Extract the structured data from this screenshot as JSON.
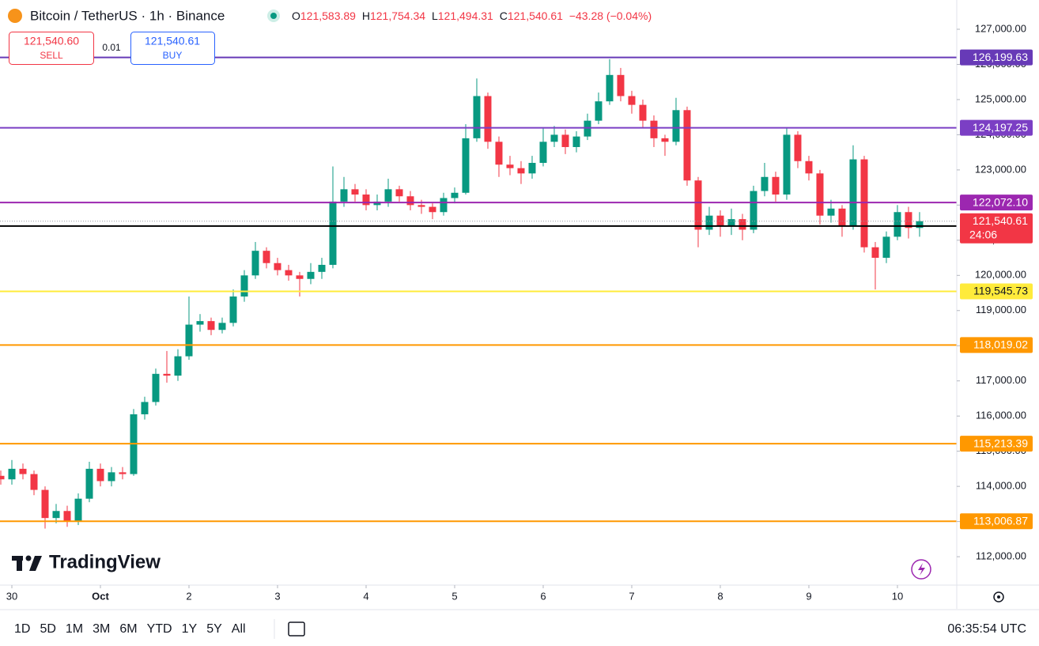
{
  "header": {
    "symbol": "Bitcoin / TetherUS · 1h · Binance",
    "ohlc": [
      {
        "key": "O",
        "value": "121,583.89"
      },
      {
        "key": "H",
        "value": "121,754.34"
      },
      {
        "key": "L",
        "value": "121,494.31"
      },
      {
        "key": "C",
        "value": "121,540.61"
      }
    ],
    "change": "−43.28 (−0.04%)"
  },
  "trade": {
    "sell_price": "121,540.60",
    "sell": "SELL",
    "spread": "0.01",
    "buy_price": "121,540.61",
    "buy": "BUY"
  },
  "chart_data": {
    "type": "candlestick",
    "x": [
      -0.125,
      0,
      0.125,
      0.25,
      0.375,
      0.5,
      0.625,
      0.75,
      0.875,
      1,
      1.125,
      1.25,
      1.375,
      1.5,
      1.625,
      1.75,
      1.875,
      2,
      2.125,
      2.25,
      2.375,
      2.5,
      2.625,
      2.75,
      2.875,
      3,
      3.125,
      3.25,
      3.375,
      3.5,
      3.625,
      3.75,
      3.875,
      4,
      4.125,
      4.25,
      4.375,
      4.5,
      4.625,
      4.75,
      4.875,
      5,
      5.125,
      5.25,
      5.375,
      5.5,
      5.625,
      5.75,
      5.875,
      6,
      6.125,
      6.25,
      6.375,
      6.5,
      6.625,
      6.75,
      6.875,
      7,
      7.125,
      7.25,
      7.375,
      7.5,
      7.625,
      7.75,
      7.875,
      8,
      8.125,
      8.25,
      8.375,
      8.5,
      8.625,
      8.75,
      8.875,
      9,
      9.125,
      9.25,
      9.375,
      9.5,
      9.625,
      9.75,
      9.875,
      10,
      10.125,
      10.25
    ],
    "open": [
      114300,
      114200,
      114500,
      114350,
      113900,
      113100,
      113300,
      113000,
      113650,
      114500,
      114150,
      114400,
      114350,
      116050,
      116400,
      117200,
      117150,
      117700,
      118600,
      118700,
      118450,
      118650,
      119400,
      120000,
      120700,
      120350,
      120150,
      120000,
      119900,
      120100,
      120300,
      122100,
      122450,
      122300,
      122000,
      122100,
      122450,
      122250,
      122000,
      121950,
      121800,
      122200,
      122350,
      123900,
      125100,
      123800,
      123150,
      123050,
      122900,
      123200,
      123800,
      124000,
      123650,
      123950,
      124400,
      124950,
      125700,
      125100,
      124850,
      124400,
      123900,
      123800,
      124700,
      122700,
      121300,
      121700,
      121400,
      121600,
      121300,
      122400,
      122800,
      122300,
      124000,
      123250,
      122900,
      121700,
      121900,
      121400,
      123300,
      120800,
      120500,
      121100,
      121800,
      121350
    ],
    "high": [
      114450,
      114750,
      114650,
      114450,
      114000,
      113500,
      113450,
      113800,
      114700,
      114650,
      114550,
      114550,
      116200,
      116550,
      117350,
      117850,
      117900,
      119400,
      118900,
      118800,
      118800,
      119600,
      120150,
      120950,
      120800,
      120500,
      120300,
      120100,
      120350,
      120500,
      123100,
      122800,
      122600,
      122450,
      122300,
      122750,
      122550,
      122400,
      122150,
      122050,
      122350,
      122500,
      124300,
      125600,
      125200,
      123950,
      123400,
      123250,
      123400,
      124200,
      124250,
      124150,
      124100,
      124600,
      125200,
      126150,
      125900,
      125250,
      125000,
      124550,
      124000,
      125050,
      124800,
      122800,
      121950,
      121850,
      121900,
      121750,
      122550,
      123200,
      122950,
      124200,
      124100,
      123400,
      123000,
      122150,
      122000,
      123700,
      123400,
      120950,
      121250,
      122000,
      121950,
      121800
    ],
    "low": [
      114050,
      114050,
      114200,
      113750,
      112800,
      112950,
      112850,
      112900,
      113550,
      114000,
      114000,
      114200,
      114300,
      115900,
      116300,
      116950,
      117000,
      117600,
      118400,
      118300,
      118350,
      118550,
      119250,
      119900,
      120200,
      120000,
      119850,
      119400,
      119750,
      119900,
      120200,
      121950,
      122100,
      121850,
      121850,
      121950,
      122100,
      121850,
      121750,
      121600,
      121700,
      122050,
      122300,
      123800,
      123600,
      122800,
      122850,
      122600,
      122750,
      123100,
      123650,
      123450,
      123500,
      123850,
      124300,
      124850,
      124950,
      124600,
      124200,
      123650,
      123400,
      123700,
      122550,
      120800,
      121150,
      121100,
      121150,
      121000,
      121200,
      122250,
      122100,
      122150,
      123050,
      122700,
      121450,
      121500,
      121100,
      121300,
      120650,
      119600,
      120350,
      121000,
      121050,
      121100
    ],
    "close": [
      114200,
      114500,
      114350,
      113900,
      113100,
      113300,
      113000,
      113650,
      114500,
      114150,
      114400,
      114350,
      116050,
      116400,
      117200,
      117150,
      117700,
      118600,
      118700,
      118450,
      118650,
      119400,
      120000,
      120700,
      120350,
      120150,
      120000,
      119900,
      120100,
      120300,
      122100,
      122450,
      122300,
      122000,
      122100,
      122450,
      122250,
      122000,
      121950,
      121800,
      122200,
      122350,
      123900,
      125100,
      123800,
      123150,
      123050,
      122900,
      123200,
      123800,
      124000,
      123650,
      123950,
      124400,
      124950,
      125700,
      125100,
      124850,
      124400,
      123900,
      123800,
      124700,
      122700,
      121300,
      121700,
      121400,
      121600,
      121300,
      122400,
      122800,
      122300,
      124000,
      123250,
      122900,
      121700,
      121900,
      121400,
      123300,
      120800,
      120500,
      121100,
      121800,
      121350,
      121540.61
    ],
    "up_color": "#089981",
    "down_color": "#f23645",
    "xlim": [
      -0.134,
      10.67
    ],
    "xticks": [
      {
        "value": 0,
        "label": "30"
      },
      {
        "value": 1,
        "label": "Oct"
      },
      2,
      3,
      4,
      5,
      6,
      7,
      8,
      9,
      10
    ],
    "ylim": [
      111192,
      127832
    ],
    "yticks": [
      {
        "value": 112000,
        "label": "112,000.00"
      },
      {
        "value": 113000,
        "label": "113,000.00"
      },
      {
        "value": 114000,
        "label": "114,000.00"
      },
      {
        "value": 115000,
        "label": "115,000.00"
      },
      {
        "value": 116000,
        "label": "116,000.00"
      },
      {
        "value": 117000,
        "label": "117,000.00"
      },
      {
        "value": 118000,
        "label": "118,000.00"
      },
      {
        "value": 119000,
        "label": "119,000.00"
      },
      {
        "value": 120000,
        "label": "120,000.00"
      },
      {
        "value": 121000,
        "label": "121,000.00"
      },
      {
        "value": 122000,
        "label": "122,000.00"
      },
      {
        "value": 123000,
        "label": "123,000.00"
      },
      {
        "value": 124000,
        "label": "124,000.00"
      },
      {
        "value": 125000,
        "label": "125,000.00"
      },
      {
        "value": 126000,
        "label": "126,000.00"
      },
      {
        "value": 127000,
        "label": "127,000.00"
      }
    ],
    "grid": false,
    "levels": [
      {
        "value": 126199.63,
        "label": "126,199.63",
        "color": "#673ab7"
      },
      {
        "value": 124197.25,
        "label": "124,197.25",
        "color": "#7b3fc4"
      },
      {
        "value": 122072.1,
        "label": "122,072.10",
        "color": "#9c27b0"
      },
      {
        "value": 119545.73,
        "label": "119,545.73",
        "color": "#ffeb3b"
      },
      {
        "value": 118019.02,
        "label": "118,019.02",
        "color": "#ff9800"
      },
      {
        "value": 115213.39,
        "label": "115,213.39",
        "color": "#ff9800"
      },
      {
        "value": 113006.87,
        "label": "113,006.87",
        "color": "#ff9800"
      }
    ],
    "last_price": {
      "value": 121540.61,
      "label": "121,540.61",
      "countdown": "24:06",
      "color": "#f23645"
    },
    "reference": {
      "value": 121403.51,
      "label": "121,403.51",
      "color": "#000000"
    }
  },
  "logo": "TradingView",
  "ranges": [
    "1D",
    "5D",
    "1M",
    "3M",
    "6M",
    "YTD",
    "1Y",
    "5Y",
    "All"
  ],
  "clock": "06:35:54 UTC"
}
